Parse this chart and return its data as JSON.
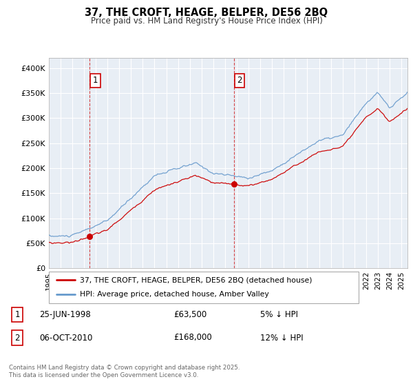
{
  "title_line1": "37, THE CROFT, HEAGE, BELPER, DE56 2BQ",
  "title_line2": "Price paid vs. HM Land Registry's House Price Index (HPI)",
  "ylim": [
    0,
    420000
  ],
  "yticks": [
    0,
    50000,
    100000,
    150000,
    200000,
    250000,
    300000,
    350000,
    400000
  ],
  "ytick_labels": [
    "£0",
    "£50K",
    "£100K",
    "£150K",
    "£200K",
    "£250K",
    "£300K",
    "£350K",
    "£400K"
  ],
  "legend_entry1": "37, THE CROFT, HEAGE, BELPER, DE56 2BQ (detached house)",
  "legend_entry2": "HPI: Average price, detached house, Amber Valley",
  "transaction1_date": "25-JUN-1998",
  "transaction1_price": "£63,500",
  "transaction1_hpi": "5% ↓ HPI",
  "transaction2_date": "06-OCT-2010",
  "transaction2_price": "£168,000",
  "transaction2_hpi": "12% ↓ HPI",
  "footer": "Contains HM Land Registry data © Crown copyright and database right 2025.\nThis data is licensed under the Open Government Licence v3.0.",
  "red_color": "#cc0000",
  "blue_color": "#6699cc",
  "plot_bg": "#e8eef5",
  "marker1_year": 1998.48,
  "marker1_value": 63500,
  "marker2_year": 2010.76,
  "marker2_value": 168000
}
